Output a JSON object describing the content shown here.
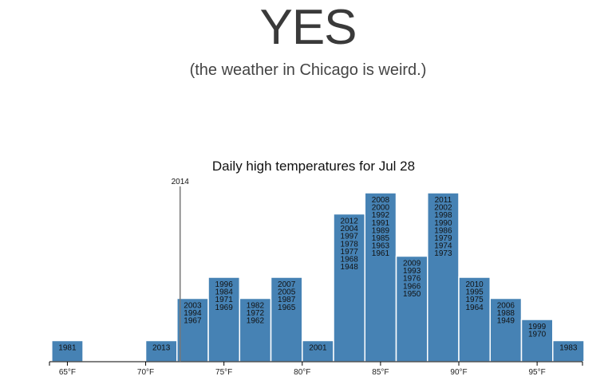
{
  "page": {
    "headline": "YES",
    "subhead": "(the weather in Chicago is weird.)"
  },
  "chart_data": {
    "type": "bar",
    "title": "Daily high temperatures for Jul 28",
    "xlabel": "",
    "ylabel": "",
    "xlim": [
      63.5,
      98
    ],
    "bin_width": 2,
    "ylim": [
      0,
      8
    ],
    "x_ticks": [
      {
        "value": 65,
        "label": "65°F"
      },
      {
        "value": 70,
        "label": "70°F"
      },
      {
        "value": 75,
        "label": "75°F"
      },
      {
        "value": 80,
        "label": "80°F"
      },
      {
        "value": 85,
        "label": "85°F"
      },
      {
        "value": 90,
        "label": "90°F"
      },
      {
        "value": 95,
        "label": "95°F"
      }
    ],
    "bins": [
      {
        "start": 64,
        "count": 1,
        "years": [
          "1981"
        ]
      },
      {
        "start": 66,
        "count": 0,
        "years": []
      },
      {
        "start": 68,
        "count": 0,
        "years": []
      },
      {
        "start": 70,
        "count": 1,
        "years": [
          "2013"
        ]
      },
      {
        "start": 72,
        "count": 3,
        "years": [
          "2003",
          "1994",
          "1967"
        ]
      },
      {
        "start": 74,
        "count": 4,
        "years": [
          "1996",
          "1984",
          "1971",
          "1969"
        ]
      },
      {
        "start": 76,
        "count": 3,
        "years": [
          "1982",
          "1972",
          "1962"
        ]
      },
      {
        "start": 78,
        "count": 4,
        "years": [
          "2007",
          "2005",
          "1987",
          "1965"
        ]
      },
      {
        "start": 80,
        "count": 1,
        "years": [
          "2001"
        ]
      },
      {
        "start": 82,
        "count": 7,
        "years": [
          "2012",
          "2004",
          "1997",
          "1978",
          "1977",
          "1968",
          "1948"
        ]
      },
      {
        "start": 84,
        "count": 8,
        "years": [
          "2008",
          "2000",
          "1992",
          "1991",
          "1989",
          "1985",
          "1963",
          "1961"
        ]
      },
      {
        "start": 86,
        "count": 5,
        "years": [
          "2009",
          "1993",
          "1976",
          "1966",
          "1950"
        ]
      },
      {
        "start": 88,
        "count": 8,
        "years": [
          "2011",
          "2002",
          "1998",
          "1990",
          "1986",
          "1979",
          "1974",
          "1973"
        ]
      },
      {
        "start": 90,
        "count": 4,
        "years": [
          "2010",
          "1995",
          "1975",
          "1964"
        ]
      },
      {
        "start": 92,
        "count": 3,
        "years": [
          "2006",
          "1988",
          "1949"
        ]
      },
      {
        "start": 94,
        "count": 2,
        "years": [
          "1999",
          "1970"
        ]
      },
      {
        "start": 96,
        "count": 1,
        "years": [
          "1983"
        ]
      }
    ],
    "marker": {
      "value": 72.2,
      "label": "2014"
    },
    "colors": {
      "bar": "#4682b4",
      "bar_stroke": "#ffffff",
      "axis": "#000000",
      "marker": "#777777"
    }
  }
}
